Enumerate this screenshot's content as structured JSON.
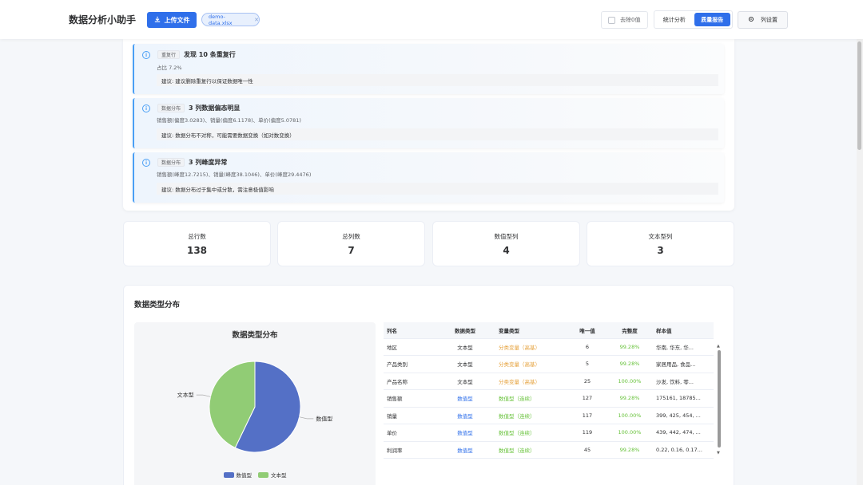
{
  "header": {
    "app_title": "数据分析小助手",
    "upload_label": "上传文件",
    "file_name": "demo-data.xlsx",
    "remove_zero_label": "去除0值",
    "tabs": [
      {
        "label": "统计分析",
        "active": false
      },
      {
        "label": "质量报告",
        "active": true
      }
    ],
    "column_settings_label": "列设置"
  },
  "alerts": [
    {
      "tag": "重复行",
      "title": "发现 10 条重复行",
      "desc": "占比 7.2%",
      "suggestion": "建议: 建议删除重复行以保证数据唯一性"
    },
    {
      "tag": "数据分布",
      "title": "3 列数据偏态明显",
      "desc": "销售额(偏度3.0283)、销量(偏度6.1178)、单价(偏度5.0781)",
      "suggestion": "建议: 数据分布不对称，可能需要数据变换（如对数变换）"
    },
    {
      "tag": "数据分布",
      "title": "3 列峰度异常",
      "desc": "销售额(峰度12.7215)、销量(峰度38.1046)、单价(峰度29.4476)",
      "suggestion": "建议: 数据分布过于集中或分散，需注意极值影响"
    }
  ],
  "stats": [
    {
      "label": "总行数",
      "value": "138"
    },
    {
      "label": "总列数",
      "value": "7"
    },
    {
      "label": "数值型列",
      "value": "4"
    },
    {
      "label": "文本型列",
      "value": "3"
    }
  ],
  "distribution": {
    "section_title": "数据类型分布",
    "chart_data": {
      "type": "pie",
      "title": "数据类型分布",
      "slices": [
        {
          "name": "数值型",
          "value": 4,
          "color": "#5470c6"
        },
        {
          "name": "文本型",
          "value": 3,
          "color": "#91cc75"
        }
      ],
      "legend": "bottom-center"
    },
    "table": {
      "headers": [
        "列名",
        "数据类型",
        "变量类型",
        "唯一值",
        "完整度",
        "样本值"
      ],
      "rows": [
        {
          "name": "地区",
          "dtype": "文本型",
          "vtype": "分类变量（高基）",
          "unique": "6",
          "completeness": "99.28%",
          "sample": "华南, 华东, 华..."
        },
        {
          "name": "产品类别",
          "dtype": "文本型",
          "vtype": "分类变量（高基）",
          "unique": "5",
          "completeness": "99.28%",
          "sample": "家居用品, 食品..."
        },
        {
          "name": "产品名称",
          "dtype": "文本型",
          "vtype": "分类变量（高基）",
          "unique": "25",
          "completeness": "100.00%",
          "sample": "沙发, 饮料, 零..."
        },
        {
          "name": "销售额",
          "dtype": "数值型",
          "vtype": "数值型（连续）",
          "unique": "127",
          "completeness": "99.28%",
          "sample": "175161, 18785..."
        },
        {
          "name": "销量",
          "dtype": "数值型",
          "vtype": "数值型（连续）",
          "unique": "117",
          "completeness": "100.00%",
          "sample": "399, 425, 454, ..."
        },
        {
          "name": "单价",
          "dtype": "数值型",
          "vtype": "数值型（连续）",
          "unique": "119",
          "completeness": "100.00%",
          "sample": "439, 442, 474, ..."
        },
        {
          "name": "利润率",
          "dtype": "数值型",
          "vtype": "数值型（连续）",
          "unique": "45",
          "completeness": "99.28%",
          "sample": "0.22, 0.16, 0.17..."
        }
      ]
    }
  }
}
